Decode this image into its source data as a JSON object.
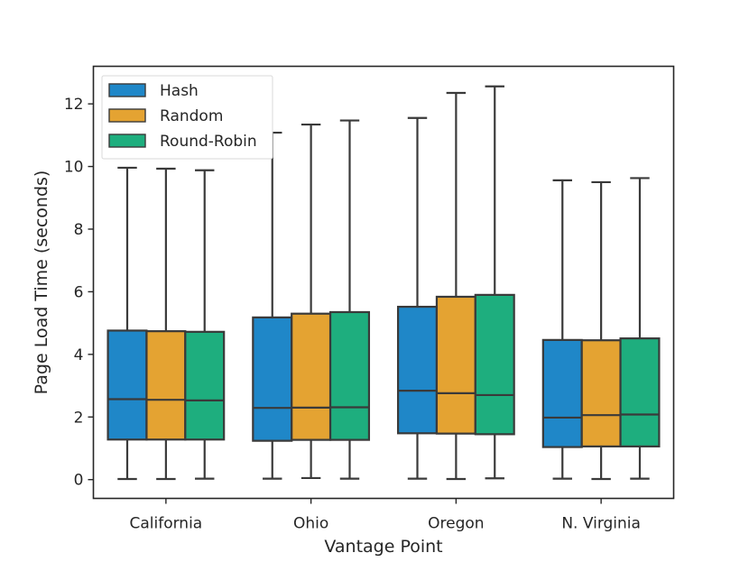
{
  "chart_data": {
    "type": "box",
    "title": "",
    "xlabel": "Vantage Point",
    "ylabel": "Page Load Time (seconds)",
    "ylim": [
      -0.6,
      13.2
    ],
    "yticks": [
      0,
      2,
      4,
      6,
      8,
      10,
      12
    ],
    "categories": [
      "California",
      "Ohio",
      "Oregon",
      "N. Virginia"
    ],
    "legend_position": "top-left",
    "series": [
      {
        "name": "Hash",
        "color": "#1f87c8",
        "boxes": [
          {
            "min": 0.02,
            "q1": 1.28,
            "median": 2.57,
            "q3": 4.76,
            "max": 9.96
          },
          {
            "min": 0.03,
            "q1": 1.24,
            "median": 2.29,
            "q3": 5.18,
            "max": 11.08
          },
          {
            "min": 0.03,
            "q1": 1.48,
            "median": 2.84,
            "q3": 5.52,
            "max": 11.55
          },
          {
            "min": 0.03,
            "q1": 1.04,
            "median": 1.98,
            "q3": 4.46,
            "max": 9.56
          }
        ]
      },
      {
        "name": "Random",
        "color": "#e4a332",
        "boxes": [
          {
            "min": 0.02,
            "q1": 1.28,
            "median": 2.55,
            "q3": 4.74,
            "max": 9.93
          },
          {
            "min": 0.05,
            "q1": 1.27,
            "median": 2.3,
            "q3": 5.3,
            "max": 11.34
          },
          {
            "min": 0.02,
            "q1": 1.47,
            "median": 2.76,
            "q3": 5.84,
            "max": 12.35
          },
          {
            "min": 0.02,
            "q1": 1.06,
            "median": 2.06,
            "q3": 4.45,
            "max": 9.5
          }
        ]
      },
      {
        "name": "Round-Robin",
        "color": "#1eae7e",
        "boxes": [
          {
            "min": 0.03,
            "q1": 1.28,
            "median": 2.53,
            "q3": 4.72,
            "max": 9.88
          },
          {
            "min": 0.03,
            "q1": 1.27,
            "median": 2.31,
            "q3": 5.35,
            "max": 11.47
          },
          {
            "min": 0.04,
            "q1": 1.45,
            "median": 2.7,
            "q3": 5.9,
            "max": 12.56
          },
          {
            "min": 0.03,
            "q1": 1.06,
            "median": 2.08,
            "q3": 4.51,
            "max": 9.63
          }
        ]
      }
    ]
  }
}
